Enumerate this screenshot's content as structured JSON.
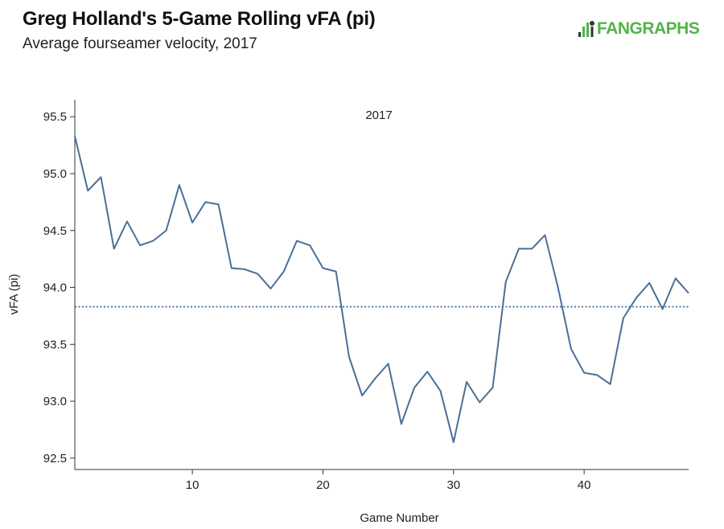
{
  "header": {
    "title": "Greg Holland's 5-Game Rolling vFA (pi)",
    "subtitle": "Average fourseamer velocity, 2017"
  },
  "logo": {
    "text": "FANGRAPHS",
    "icon": "fangraphs-logo-icon",
    "color": "#52b448"
  },
  "chart_data": {
    "type": "line",
    "annotation": "2017",
    "xlabel": "Game Number",
    "ylabel": "vFA (pi)",
    "xlim": [
      1,
      48
    ],
    "ylim": [
      92.4,
      95.65
    ],
    "xticks": [
      10,
      20,
      30,
      40
    ],
    "yticks": [
      92.5,
      93.0,
      93.5,
      94.0,
      94.5,
      95.0,
      95.5
    ],
    "ytick_labels": [
      "92.5",
      "93.0",
      "93.5",
      "94.0",
      "94.5",
      "95.0",
      "95.5"
    ],
    "reference_line": {
      "y": 93.83,
      "style": "dotted"
    },
    "line_color": "#4a6f97",
    "series": [
      {
        "x": [
          1,
          2,
          3,
          4,
          5,
          6,
          7,
          8,
          9,
          10,
          11,
          12,
          13,
          14,
          15,
          16,
          17,
          18,
          19,
          20,
          21,
          22,
          23,
          24,
          25,
          26,
          27,
          28,
          29,
          30,
          31,
          32,
          33,
          34,
          35,
          36,
          37,
          38,
          39,
          40,
          41,
          42,
          43,
          44,
          45,
          46,
          47,
          48
        ],
        "values": [
          95.33,
          94.85,
          94.97,
          94.34,
          94.58,
          94.37,
          94.41,
          94.5,
          94.9,
          94.57,
          94.75,
          94.73,
          94.17,
          94.16,
          94.12,
          93.99,
          94.14,
          94.41,
          94.37,
          94.17,
          94.14,
          93.39,
          93.05,
          93.2,
          93.33,
          92.8,
          93.12,
          93.26,
          93.09,
          92.64,
          93.17,
          92.99,
          93.12,
          94.05,
          94.34,
          94.34,
          94.46,
          94.0,
          93.46,
          93.25,
          93.23,
          93.15,
          93.73,
          93.91,
          94.04,
          93.81,
          94.08,
          93.95
        ]
      }
    ]
  }
}
